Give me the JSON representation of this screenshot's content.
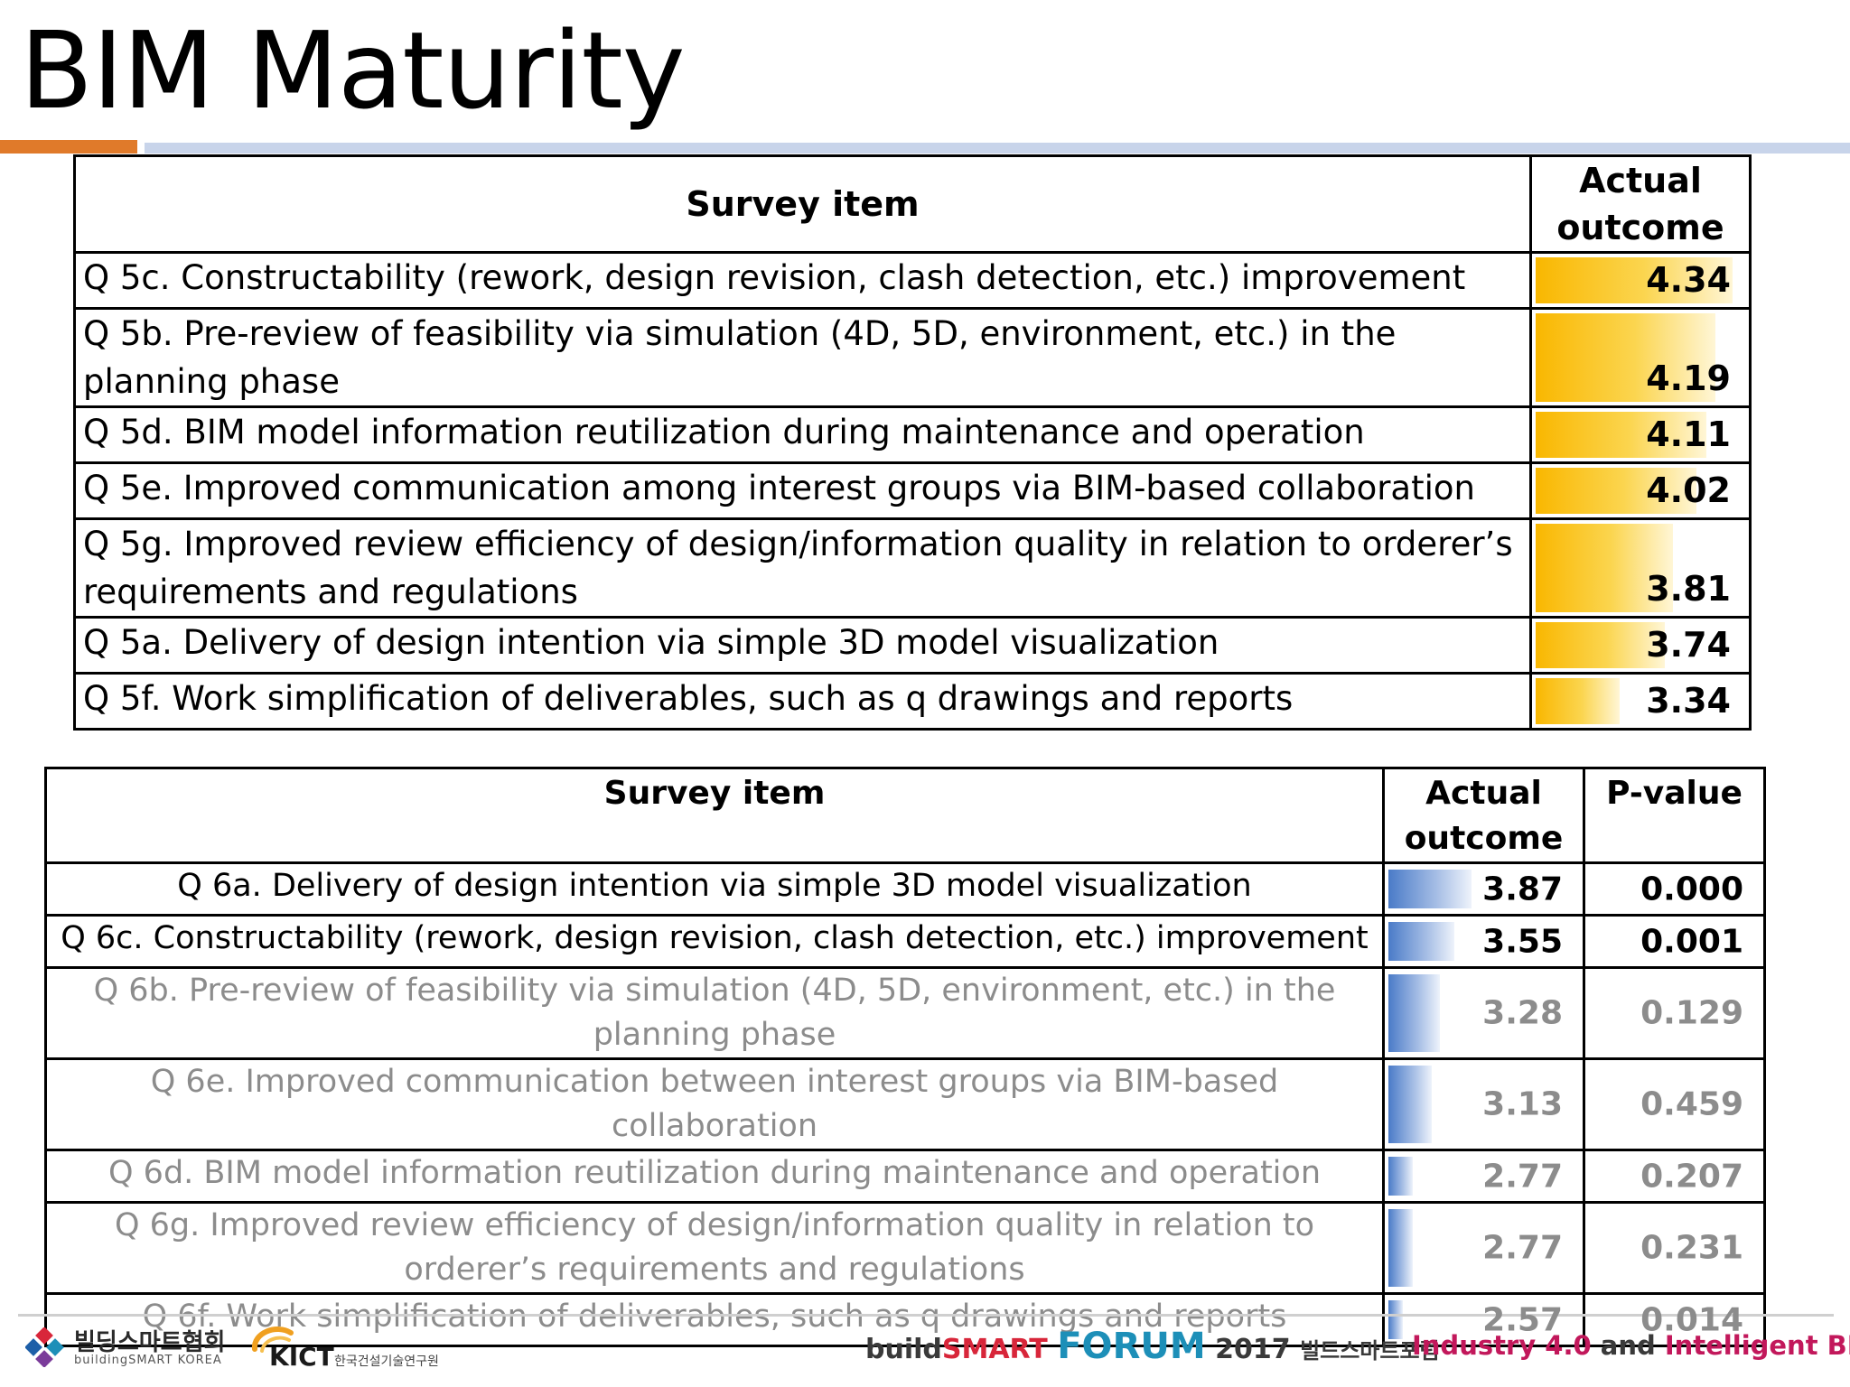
{
  "page_title": "BIM Maturity",
  "table1": {
    "headers": {
      "item": "Survey item",
      "outcome": "Actual outcome"
    },
    "rows": [
      {
        "item": "Q 5c. Constructability (rework, design revision, clash detection, etc.) improvement",
        "value": "4.34",
        "level": 4.34
      },
      {
        "item": "Q 5b. Pre-review of feasibility via simulation (4D, 5D, environment, etc.) in the planning phase",
        "value": "4.19",
        "level": 4.19
      },
      {
        "item": "Q 5d. BIM model information reutilization during maintenance and operation",
        "value": "4.11",
        "level": 4.11
      },
      {
        "item": "Q 5e. Improved communication among interest groups via BIM-based collaboration",
        "value": "4.02",
        "level": 4.02
      },
      {
        "item": "Q 5g. Improved review efficiency of design/information quality in relation to orderer’s requirements and regulations",
        "value": "3.81",
        "level": 3.81
      },
      {
        "item": "Q 5a. Delivery of design intention via simple 3D model visualization",
        "value": "3.74",
        "level": 3.74
      },
      {
        "item": "Q 5f. Work simplification of deliverables, such as q drawings and reports",
        "value": "3.34",
        "level": 3.34
      }
    ]
  },
  "table2": {
    "headers": {
      "item": "Survey item",
      "outcome": "Actual outcome",
      "pvalue": "P-value"
    },
    "rows": [
      {
        "item": "Q 6a. Delivery of design intention via simple 3D model visualization",
        "value": "3.87",
        "level": 3.87,
        "pvalue": "0.000",
        "significant": true
      },
      {
        "item": "Q 6c. Constructability (rework, design revision, clash detection, etc.) improvement",
        "value": "3.55",
        "level": 3.55,
        "pvalue": "0.001",
        "significant": true
      },
      {
        "item": "Q 6b. Pre-review of feasibility via simulation (4D, 5D, environment, etc.) in the planning phase",
        "value": "3.28",
        "level": 3.28,
        "pvalue": "0.129",
        "significant": false
      },
      {
        "item": "Q 6e. Improved communication between interest groups via BIM-based collaboration",
        "value": "3.13",
        "level": 3.13,
        "pvalue": "0.459",
        "significant": false
      },
      {
        "item": "Q 6d. BIM model information reutilization during maintenance and operation",
        "value": "2.77",
        "level": 2.77,
        "pvalue": "0.207",
        "significant": false
      },
      {
        "item": "Q 6g. Improved review efficiency of design/information quality in relation to orderer’s requirements and regulations",
        "value": "2.77",
        "level": 2.77,
        "pvalue": "0.231",
        "significant": false
      },
      {
        "item": "Q 6f. Work simplification of deliverables, such as q drawings and reports",
        "value": "2.57",
        "level": 2.57,
        "pvalue": "0.014",
        "significant": false
      }
    ]
  },
  "footer": {
    "logo1_ko": "빌딩스마트협회",
    "logo1_en": "buildingSMART KOREA",
    "logo2_en": "KICT",
    "logo2_ko": "한국건설기술연구원",
    "forum_build": "build",
    "forum_smart": "SMART",
    "forum_forum": "FORUM",
    "forum_year": "2017",
    "forum_ko": "빌드스마트포럼",
    "tagline_a": "Industry 4.0",
    "tagline_b": "and",
    "tagline_c": "Intelligent BIM"
  },
  "colors": {
    "accent_orange": "#e07a2a",
    "accent_blue_rule": "#c8d4ea",
    "bar_gold": "#f9b700",
    "bar_blue": "#4a7bc8",
    "muted_text": "#8c8c8c"
  }
}
